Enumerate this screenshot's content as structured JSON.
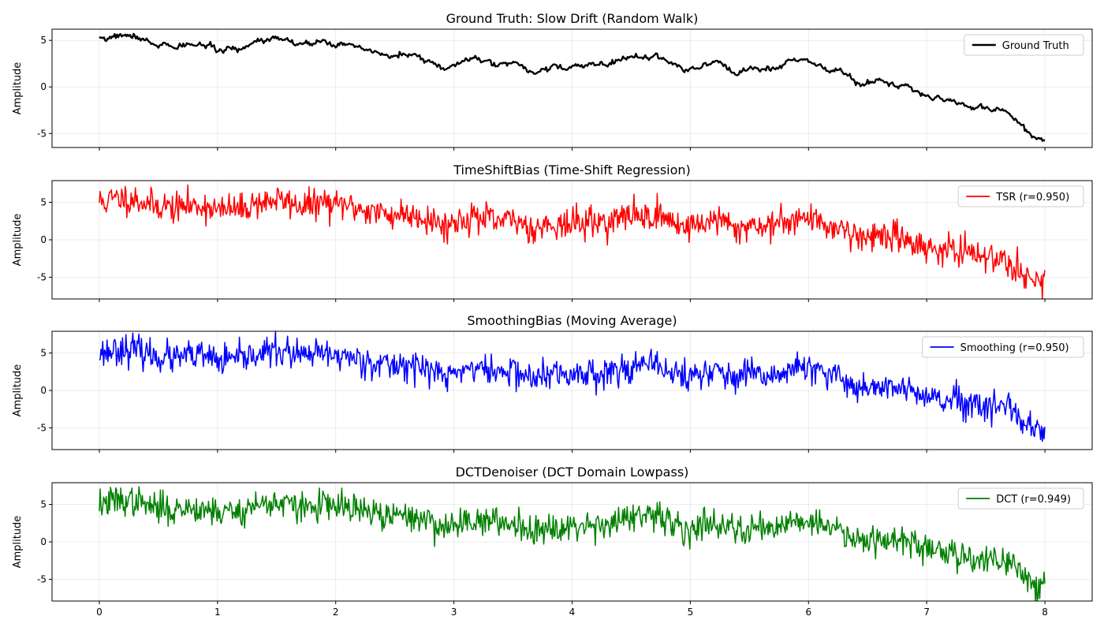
{
  "chart_data": [
    {
      "type": "line",
      "title": "Ground Truth: Slow Drift (Random Walk)",
      "xlabel": "",
      "ylabel": "Amplitude",
      "xlim": [
        -0.4,
        8.4
      ],
      "ylim": [
        -6.5,
        6.2
      ],
      "xticks": [
        0,
        1,
        2,
        3,
        4,
        5,
        6,
        7,
        8
      ],
      "yticks": [
        -5,
        0,
        5
      ],
      "show_xticklabels": false,
      "grid": true,
      "legend_position": "top-right",
      "series": [
        {
          "name": "Ground Truth",
          "color": "#000000",
          "line_width": "thick",
          "noise": 0.0,
          "x": [
            0,
            0.05,
            0.1,
            0.15,
            0.2,
            0.25,
            0.3,
            0.35,
            0.4,
            0.45,
            0.5,
            0.55,
            0.6,
            0.65,
            0.7,
            0.75,
            0.8,
            0.85,
            0.9,
            0.95,
            1.0,
            1.05,
            1.1,
            1.15,
            1.2,
            1.25,
            1.3,
            1.35,
            1.4,
            1.45,
            1.5,
            1.55,
            1.6,
            1.65,
            1.7,
            1.75,
            1.8,
            1.85,
            1.9,
            1.95,
            2.0,
            2.05,
            2.1,
            2.15,
            2.2,
            2.25,
            2.3,
            2.35,
            2.4,
            2.45,
            2.5,
            2.55,
            2.6,
            2.65,
            2.7,
            2.75,
            2.8,
            2.85,
            2.9,
            2.95,
            3.0,
            3.05,
            3.1,
            3.15,
            3.2,
            3.25,
            3.3,
            3.35,
            3.4,
            3.45,
            3.5,
            3.55,
            3.6,
            3.65,
            3.7,
            3.75,
            3.8,
            3.85,
            3.9,
            3.95,
            4.0,
            4.05,
            4.1,
            4.15,
            4.2,
            4.25,
            4.3,
            4.35,
            4.4,
            4.45,
            4.5,
            4.55,
            4.6,
            4.65,
            4.7,
            4.75,
            4.8,
            4.85,
            4.9,
            4.95,
            5.0,
            5.05,
            5.1,
            5.15,
            5.2,
            5.25,
            5.3,
            5.35,
            5.4,
            5.45,
            5.5,
            5.55,
            5.6,
            5.65,
            5.7,
            5.75,
            5.8,
            5.85,
            5.9,
            5.95,
            6.0,
            6.05,
            6.1,
            6.15,
            6.2,
            6.25,
            6.3,
            6.35,
            6.4,
            6.45,
            6.5,
            6.55,
            6.6,
            6.65,
            6.7,
            6.75,
            6.8,
            6.85,
            6.9,
            6.95,
            7.0,
            7.05,
            7.1,
            7.15,
            7.2,
            7.25,
            7.3,
            7.35,
            7.4,
            7.45,
            7.5,
            7.55,
            7.6,
            7.65,
            7.7,
            7.75,
            7.8,
            7.85,
            7.9,
            7.95,
            8.0
          ],
          "y": [
            5.2,
            5.0,
            5.4,
            5.5,
            5.6,
            5.4,
            5.5,
            5.1,
            5.0,
            4.6,
            4.4,
            4.7,
            4.3,
            4.1,
            4.5,
            4.6,
            4.4,
            4.7,
            4.3,
            4.5,
            3.9,
            3.8,
            4.2,
            4.1,
            4.0,
            4.4,
            4.8,
            5.1,
            4.9,
            5.3,
            5.4,
            5.0,
            5.2,
            4.6,
            4.5,
            4.8,
            4.4,
            4.9,
            5.1,
            4.6,
            4.4,
            4.8,
            4.6,
            4.3,
            4.2,
            4.0,
            3.8,
            3.7,
            3.5,
            3.2,
            3.3,
            3.6,
            3.4,
            3.4,
            3.3,
            2.9,
            2.7,
            2.4,
            2.0,
            1.9,
            2.3,
            2.6,
            2.9,
            3.1,
            3.0,
            2.7,
            2.8,
            2.2,
            2.6,
            2.4,
            2.7,
            2.5,
            2.0,
            1.6,
            1.5,
            2.0,
            1.9,
            2.4,
            2.0,
            1.8,
            2.2,
            2.4,
            2.0,
            2.6,
            2.3,
            2.5,
            2.3,
            2.6,
            2.9,
            3.1,
            3.2,
            3.4,
            3.2,
            3.0,
            3.4,
            3.1,
            2.8,
            2.5,
            2.2,
            1.6,
            2.0,
            1.9,
            2.2,
            2.5,
            2.8,
            2.6,
            2.1,
            1.6,
            1.3,
            1.8,
            2.1,
            2.0,
            1.8,
            2.0,
            1.9,
            2.1,
            2.5,
            3.0,
            2.8,
            3.1,
            2.8,
            2.4,
            2.5,
            1.8,
            1.8,
            1.9,
            1.5,
            1.1,
            0.4,
            0.2,
            0.5,
            0.6,
            0.8,
            0.5,
            0.4,
            0.0,
            0.3,
            0.1,
            -0.4,
            -0.7,
            -1.0,
            -1.3,
            -1.1,
            -1.5,
            -1.2,
            -1.7,
            -1.7,
            -2.1,
            -2.3,
            -2.0,
            -2.2,
            -2.5,
            -2.4,
            -2.3,
            -3.0,
            -3.5,
            -4.2,
            -4.8,
            -5.3,
            -5.5,
            -5.6
          ]
        }
      ]
    },
    {
      "type": "line",
      "title": "TimeShiftBias (Time-Shift Regression)",
      "xlabel": "",
      "ylabel": "Amplitude",
      "xlim": [
        -0.4,
        8.4
      ],
      "ylim": [
        -7.9,
        7.9
      ],
      "xticks": [
        0,
        1,
        2,
        3,
        4,
        5,
        6,
        7,
        8
      ],
      "yticks": [
        -5,
        0,
        5
      ],
      "show_xticklabels": false,
      "grid": true,
      "legend_position": "top-right",
      "series": [
        {
          "name": "TSR (r=0.950)",
          "color": "#ff0000",
          "line_width": "normal",
          "noise": 1.0,
          "seed": 11,
          "base": "ground_truth"
        }
      ]
    },
    {
      "type": "line",
      "title": "SmoothingBias (Moving Average)",
      "xlabel": "",
      "ylabel": "Amplitude",
      "xlim": [
        -0.4,
        8.4
      ],
      "ylim": [
        -7.9,
        7.9
      ],
      "xticks": [
        0,
        1,
        2,
        3,
        4,
        5,
        6,
        7,
        8
      ],
      "yticks": [
        -5,
        0,
        5
      ],
      "show_xticklabels": false,
      "grid": true,
      "legend_position": "top-right",
      "series": [
        {
          "name": "Smoothing (r=0.950)",
          "color": "#0000ff",
          "line_width": "normal",
          "noise": 1.0,
          "seed": 23,
          "base": "ground_truth"
        }
      ]
    },
    {
      "type": "line",
      "title": "DCTDenoiser (DCT Domain Lowpass)",
      "xlabel": "",
      "ylabel": "Amplitude",
      "xlim": [
        -0.4,
        8.4
      ],
      "ylim": [
        -7.9,
        7.9
      ],
      "xticks": [
        0,
        1,
        2,
        3,
        4,
        5,
        6,
        7,
        8
      ],
      "yticks": [
        -5,
        0,
        5
      ],
      "show_xticklabels": true,
      "grid": true,
      "legend_position": "top-right",
      "series": [
        {
          "name": "DCT (r=0.949)",
          "color": "#008000",
          "line_width": "normal",
          "noise": 1.0,
          "seed": 37,
          "base": "ground_truth"
        }
      ]
    }
  ]
}
